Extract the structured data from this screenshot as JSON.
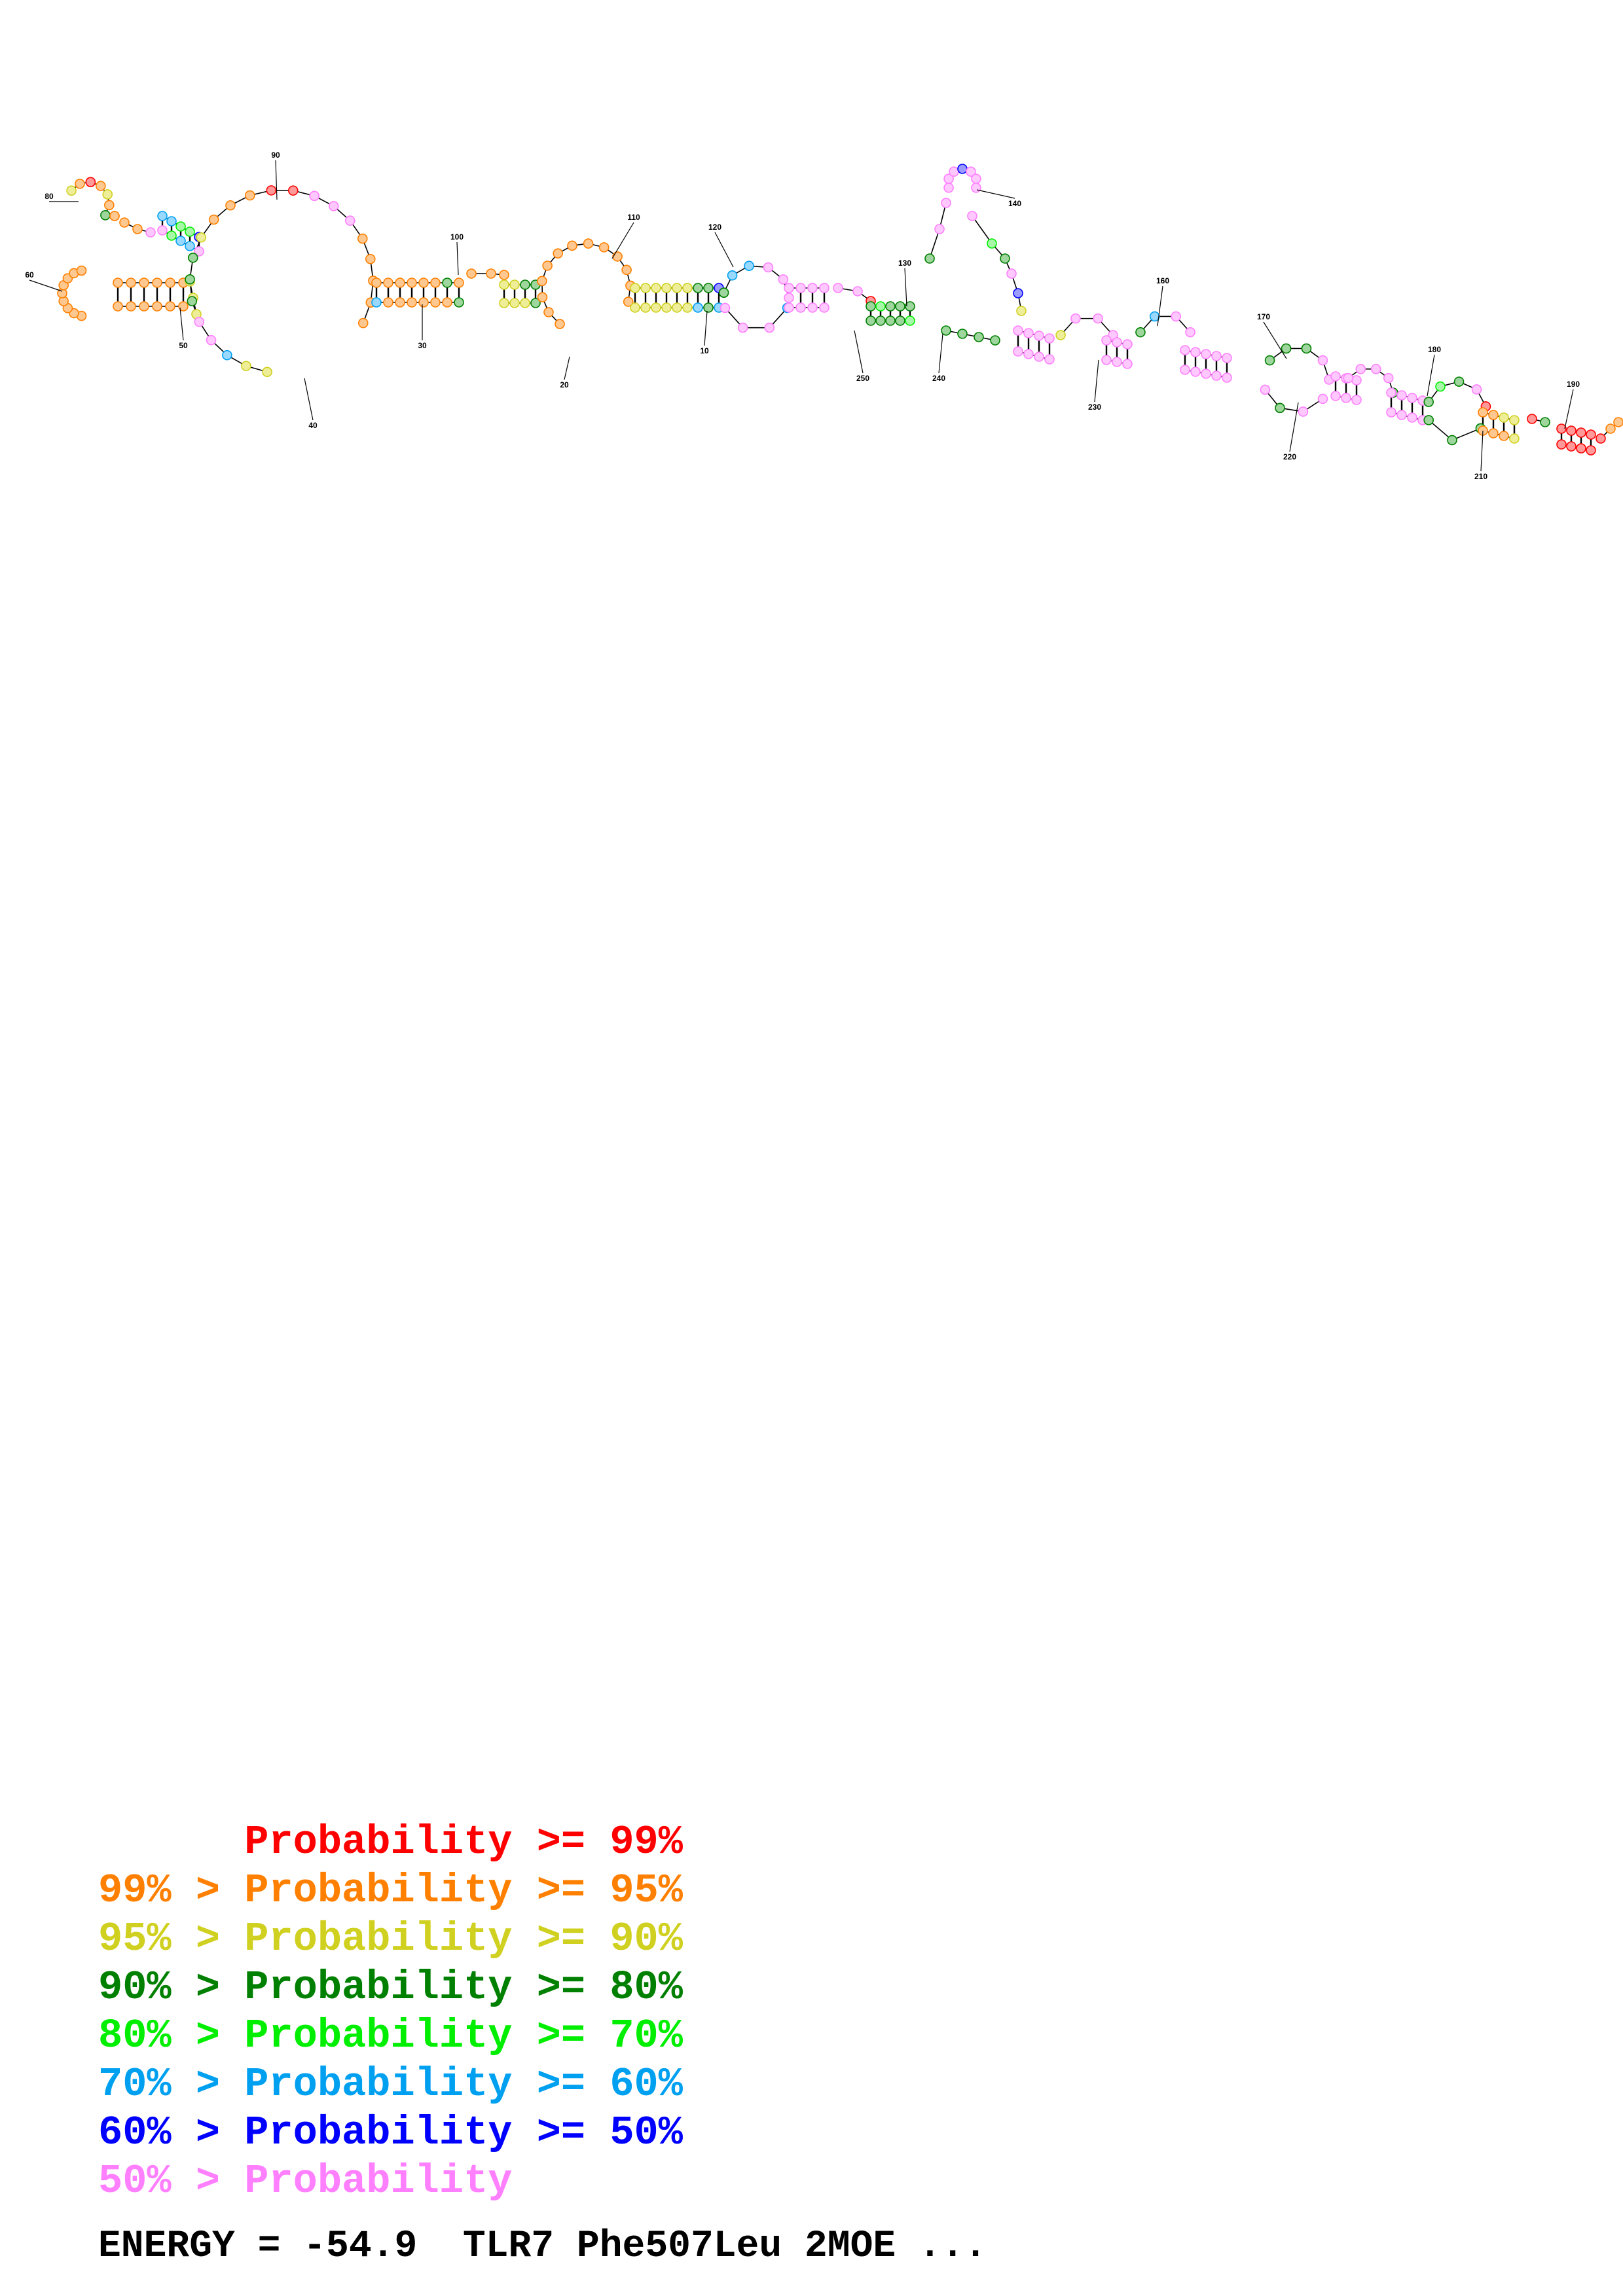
{
  "legend": [
    {
      "prefix": "    ",
      "label": "Probability >= 99%",
      "color": "#ff0000"
    },
    {
      "prefix": "99% > ",
      "label": "Probability >= 95%",
      "color": "#ff8000"
    },
    {
      "prefix": "95% > ",
      "label": "Probability >= 90%",
      "color": "#d0d020"
    },
    {
      "prefix": "90% > ",
      "label": "Probability >= 80%",
      "color": "#008000"
    },
    {
      "prefix": "80% > ",
      "label": "Probability >= 70%",
      "color": "#00ee00"
    },
    {
      "prefix": "70% > ",
      "label": "Probability >= 60%",
      "color": "#00a0f0"
    },
    {
      "prefix": "60% > ",
      "label": "Probability >= 50%",
      "color": "#0000ff"
    },
    {
      "prefix": "50% > ",
      "label": "Probability",
      "color": "#ff80ff"
    }
  ],
  "legend_text": {
    "l0": "      Probability >= 99%",
    "l1": "99% > Probability >= 95%",
    "l2": "95% > Probability >= 90%",
    "l3": "90% > Probability >= 80%",
    "l4": "80% > Probability >= 70%",
    "l5": "70% > Probability >= 60%",
    "l6": "60% > Probability >= 50%",
    "l7": "50% > Probability"
  },
  "energy_line": "ENERGY = -54.9  TLR7 Phe507Leu 2MOE ...",
  "position_labels": [
    "10",
    "20",
    "30",
    "40",
    "50",
    "60",
    "80",
    "90",
    "100",
    "110",
    "120",
    "130",
    "140",
    "160",
    "170",
    "180",
    "190",
    "210",
    "220",
    "230",
    "240",
    "250"
  ],
  "colors": {
    "p99": "#ff0000",
    "p95": "#ff8000",
    "p90": "#d0d020",
    "p80": "#008000",
    "p70": "#00ee00",
    "p60": "#00a0f0",
    "p50": "#0000ff",
    "plow": "#ff80ff"
  }
}
